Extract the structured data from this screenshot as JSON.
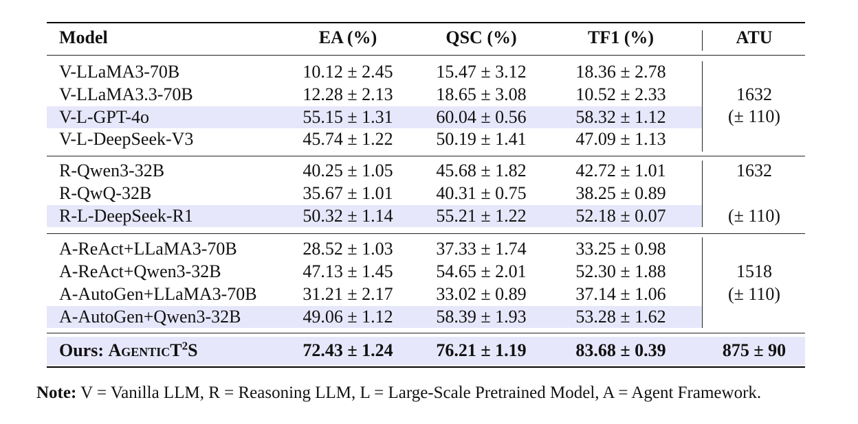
{
  "headers": {
    "model": "Model",
    "ea": "EA (%)",
    "qsc": "QSC (%)",
    "tf1": "TF1 (%)",
    "atu": "ATU"
  },
  "groups": [
    {
      "rows": [
        {
          "model": "V-LLaMA3-70B",
          "ea": "10.12 ± 2.45",
          "qsc": "15.47 ± 3.12",
          "tf1": "18.36 ± 2.78",
          "highlight": false
        },
        {
          "model": "V-LLaMA3.3-70B",
          "ea": "12.28 ± 2.13",
          "qsc": "18.65 ± 3.08",
          "tf1": "10.52 ± 2.33",
          "highlight": false
        },
        {
          "model": "V-L-GPT-4o",
          "ea": "55.15 ± 1.31",
          "qsc": "60.04 ± 0.56",
          "tf1": "58.32 ± 1.12",
          "highlight": true
        },
        {
          "model": "V-L-DeepSeek-V3",
          "ea": "45.74 ± 1.22",
          "qsc": "50.19 ± 1.41",
          "tf1": "47.09 ± 1.13",
          "highlight": false
        }
      ],
      "atu_value": "1632",
      "atu_std": "(± 110)"
    },
    {
      "rows": [
        {
          "model": "R-Qwen3-32B",
          "ea": "40.25 ± 1.05",
          "qsc": "45.68 ± 1.82",
          "tf1": "42.72 ± 1.01",
          "highlight": false
        },
        {
          "model": "R-QwQ-32B",
          "ea": "35.67 ± 1.01",
          "qsc": "40.31 ± 0.75",
          "tf1": "38.25 ± 0.89",
          "highlight": false
        },
        {
          "model": "R-L-DeepSeek-R1",
          "ea": "50.32 ± 1.14",
          "qsc": "55.21 ± 1.22",
          "tf1": "52.18 ± 0.07",
          "highlight": true
        }
      ],
      "atu_value": "1632",
      "atu_std": "(± 110)"
    },
    {
      "rows": [
        {
          "model": "A-ReAct+LLaMA3-70B",
          "ea": "28.52 ± 1.03",
          "qsc": "37.33 ± 1.74",
          "tf1": "33.25 ± 0.98",
          "highlight": false
        },
        {
          "model": "A-ReAct+Qwen3-32B",
          "ea": "47.13 ± 1.45",
          "qsc": "54.65 ± 2.01",
          "tf1": "52.30 ± 1.88",
          "highlight": false
        },
        {
          "model": "A-AutoGen+LLaMA3-70B",
          "ea": "31.21 ± 2.17",
          "qsc": "33.02 ± 0.89",
          "tf1": "37.14 ± 1.06",
          "highlight": false
        },
        {
          "model": "A-AutoGen+Qwen3-32B",
          "ea": "49.06 ± 1.12",
          "qsc": "58.39 ± 1.93",
          "tf1": "53.28 ± 1.62",
          "highlight": true
        }
      ],
      "atu_value": "1518",
      "atu_std": "(± 110)"
    }
  ],
  "ours": {
    "prefix": "Ours:",
    "name_sc": "AgenticT",
    "sup": "2",
    "suffix": "S",
    "ea": "72.43 ± 1.24",
    "qsc": "76.21 ± 1.19",
    "tf1": "83.68 ± 0.39",
    "atu": "875 ± 90"
  },
  "note": {
    "label": "Note:",
    "text": " V = Vanilla LLM, R = Reasoning LLM, L = Large-Scale Pretrained Model, A = Agent Framework."
  },
  "colors": {
    "highlight": "#e7e7fb",
    "rule": "#000000"
  }
}
